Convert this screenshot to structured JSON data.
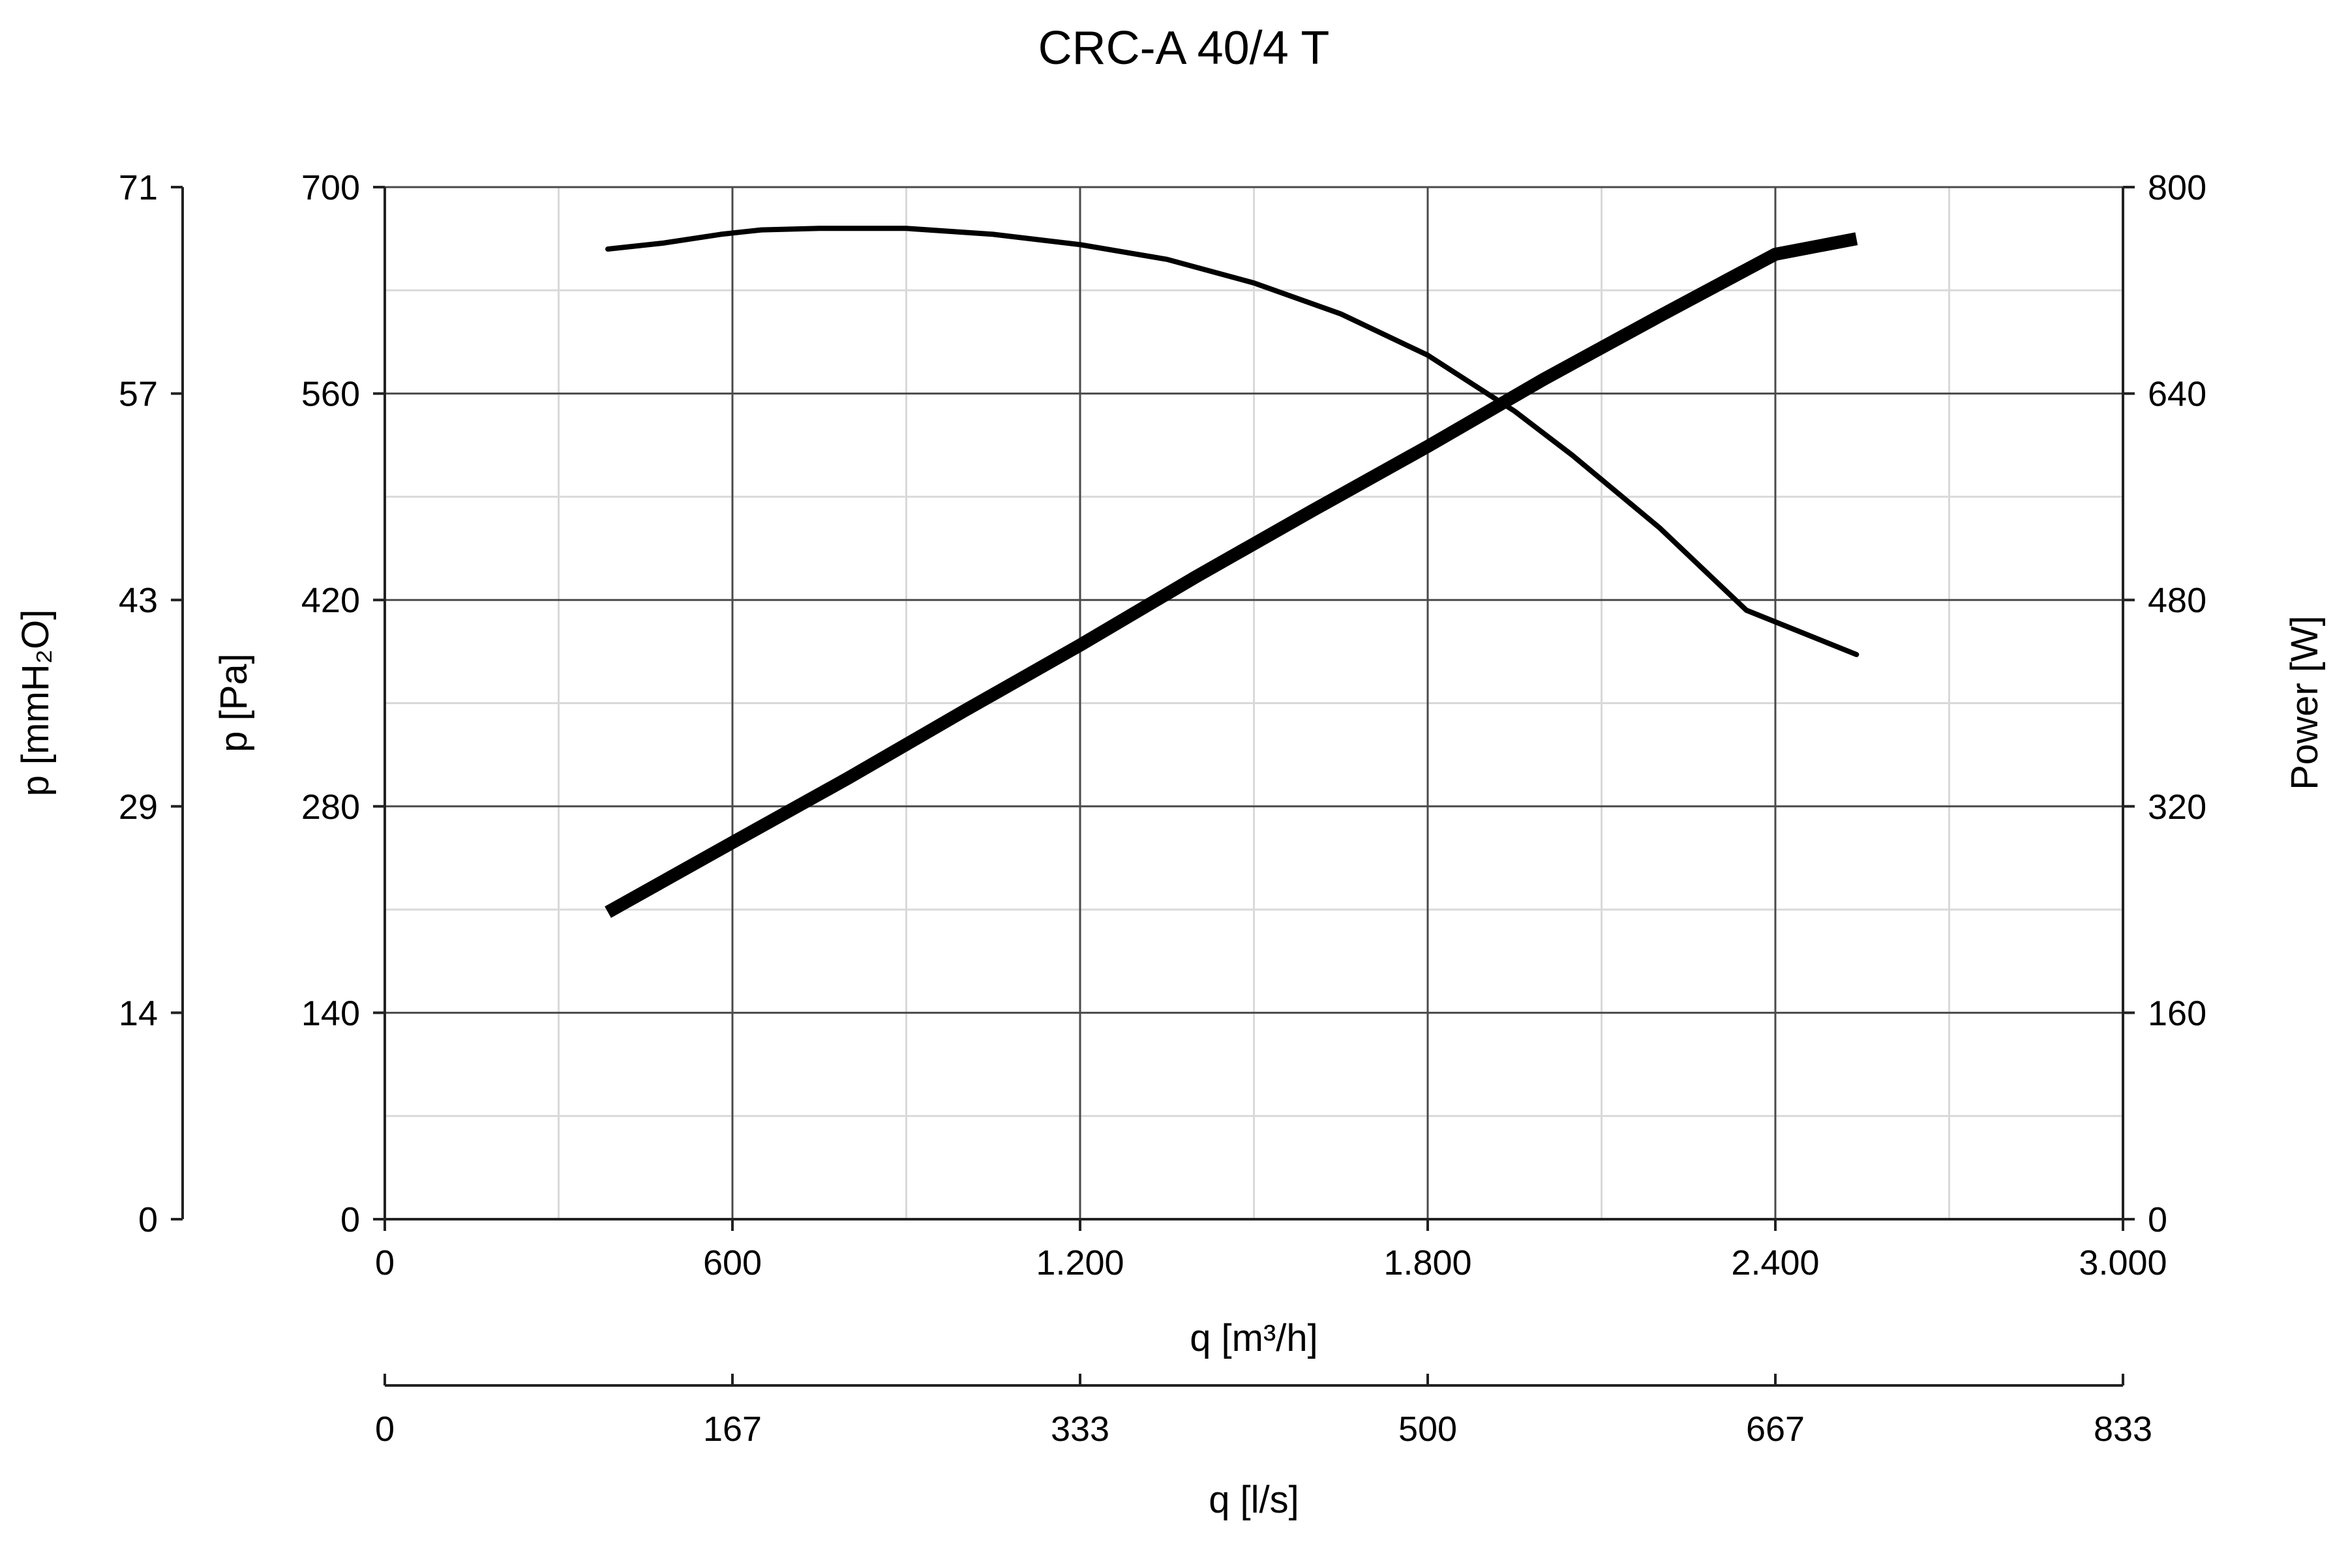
{
  "chart_data": {
    "type": "line",
    "title": "CRC-A 40/4 T",
    "x_axes": [
      {
        "label": "q [m³/h]",
        "range": [
          0,
          3000
        ],
        "tick_values": [
          0,
          600,
          1200,
          1800,
          2400,
          3000
        ],
        "tick_labels": [
          "0",
          "600",
          "1.200",
          "1.800",
          "2.400",
          "3.000"
        ]
      },
      {
        "label": "q [l/s]",
        "range": [
          0,
          833
        ],
        "tick_labels": [
          "0",
          "167",
          "333",
          "500",
          "667",
          "833"
        ]
      }
    ],
    "y_axes": [
      {
        "label": "p [Pa]",
        "range": [
          0,
          700
        ],
        "tick_values": [
          0,
          140,
          280,
          420,
          560,
          700
        ],
        "tick_labels": [
          "0",
          "140",
          "280",
          "420",
          "560",
          "700"
        ]
      },
      {
        "label": "p [mmH₂O]",
        "range": [
          0,
          71
        ],
        "tick_labels": [
          "0",
          "14",
          "29",
          "43",
          "57",
          "71"
        ]
      },
      {
        "label": "Power [W]",
        "range": [
          0,
          800
        ],
        "tick_values": [
          0,
          160,
          320,
          480,
          640,
          800
        ],
        "tick_labels": [
          "0",
          "160",
          "320",
          "480",
          "640",
          "800"
        ]
      }
    ],
    "grid": true,
    "series": [
      {
        "axis": "p [Pa]",
        "x": [
          385,
          480,
          580,
          650,
          750,
          900,
          1050,
          1200,
          1350,
          1500,
          1650,
          1800,
          1950,
          2050,
          2200,
          2350,
          2540
        ],
        "y": [
          658,
          662,
          668,
          671,
          672,
          672,
          668,
          661,
          651,
          635,
          614,
          586,
          548,
          518,
          469,
          413,
          383
        ]
      },
      {
        "axis": "Power [W]",
        "x": [
          385,
          600,
          800,
          1000,
          1200,
          1400,
          1600,
          1800,
          2000,
          2200,
          2400,
          2540
        ],
        "y": [
          238,
          292,
          342,
          394,
          445,
          498,
          549,
          599,
          651,
          700,
          748,
          760
        ]
      }
    ]
  }
}
